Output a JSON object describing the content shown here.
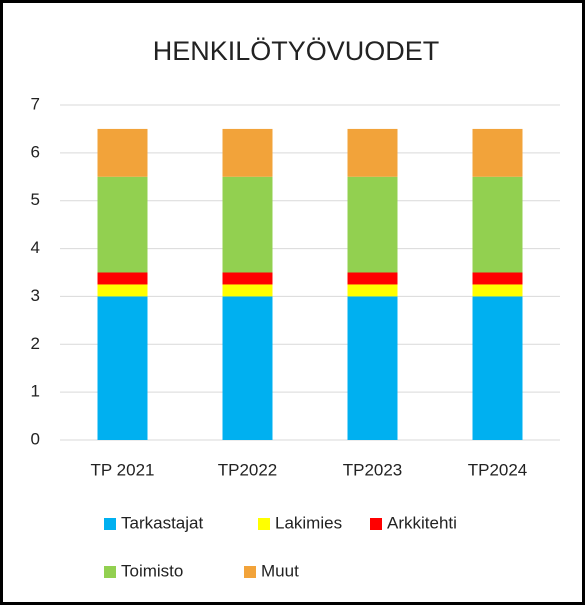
{
  "chart_data": {
    "type": "stacked_bar",
    "title": "HENKILÖTYÖVUODET",
    "categories": [
      "TP 2021",
      "TP2022",
      "TP2023",
      "TP2024"
    ],
    "series": [
      {
        "name": "Tarkastajat",
        "color": "#00b0f0",
        "values": [
          3,
          3,
          3,
          3
        ]
      },
      {
        "name": "Lakimies",
        "color": "#ffff00",
        "values": [
          0.25,
          0.25,
          0.25,
          0.25
        ]
      },
      {
        "name": "Arkkitehti",
        "color": "#ff0000",
        "values": [
          0.25,
          0.25,
          0.25,
          0.25
        ]
      },
      {
        "name": "Toimisto",
        "color": "#92d050",
        "values": [
          2,
          2,
          2,
          2
        ]
      },
      {
        "name": "Muut",
        "color": "#f2a33a",
        "values": [
          1,
          1,
          1,
          1
        ]
      }
    ],
    "ylim": [
      0,
      7
    ],
    "yticks": [
      0,
      1,
      2,
      3,
      4,
      5,
      6,
      7
    ],
    "grid": true,
    "legend": "bottom"
  }
}
